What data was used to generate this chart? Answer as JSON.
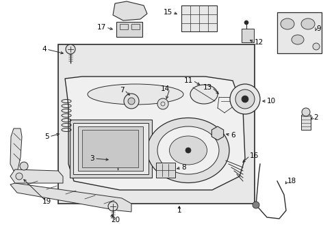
{
  "bg_color": "#ffffff",
  "lc": "#2a2a2a",
  "panel_fill": "#e8e8e8",
  "part_fill": "#d4d4d4",
  "figsize": [
    4.89,
    3.6
  ],
  "dpi": 100,
  "xlim": [
    0,
    489
  ],
  "ylim": [
    0,
    360
  ]
}
